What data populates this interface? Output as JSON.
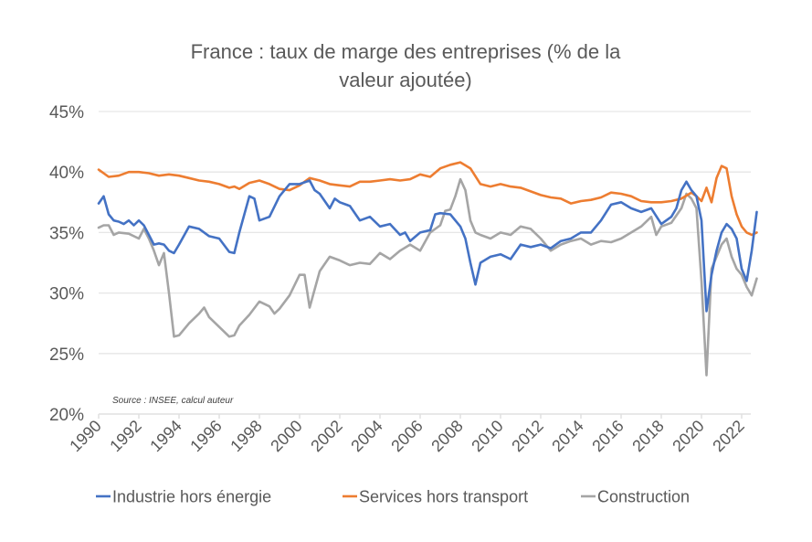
{
  "chart_data": {
    "type": "line",
    "title": "France : taux de marge des entreprises (% de la valeur ajoutée)",
    "title_lines": [
      "France : taux de marge des entreprises (% de la",
      "valeur ajoutée)"
    ],
    "xlabel": "",
    "ylabel": "",
    "source_note": "Source : INSEE, calcul auteur",
    "ylim": [
      20,
      45
    ],
    "yticks": [
      20,
      25,
      30,
      35,
      40,
      45
    ],
    "ytick_labels": [
      "20%",
      "25%",
      "30%",
      "35%",
      "40%",
      "45%"
    ],
    "xlim": [
      1990,
      2022.75
    ],
    "xticks": [
      1990,
      1992,
      1994,
      1996,
      1998,
      2000,
      2002,
      2004,
      2006,
      2008,
      2010,
      2012,
      2014,
      2016,
      2018,
      2020,
      2022
    ],
    "xtick_labels": [
      "1990",
      "1992",
      "1994",
      "1996",
      "1998",
      "2000",
      "2002",
      "2004",
      "2006",
      "2008",
      "2010",
      "2012",
      "2014",
      "2016",
      "2018",
      "2020",
      "2022"
    ],
    "grid": true,
    "legend_position": "bottom",
    "series": [
      {
        "name": "Industrie hors énergie",
        "color": "#4472C4",
        "x": [
          1990,
          1990.25,
          1990.5,
          1990.75,
          1991,
          1991.25,
          1991.5,
          1991.75,
          1992,
          1992.25,
          1992.5,
          1992.75,
          1993,
          1993.25,
          1993.5,
          1993.75,
          1994,
          1994.5,
          1995,
          1995.5,
          1996,
          1996.5,
          1996.75,
          1997,
          1997.5,
          1997.75,
          1998,
          1998.5,
          1999,
          1999.5,
          2000,
          2000.5,
          2000.75,
          2001,
          2001.5,
          2001.75,
          2002,
          2002.5,
          2003,
          2003.5,
          2004,
          2004.5,
          2005,
          2005.25,
          2005.5,
          2006,
          2006.5,
          2006.75,
          2007,
          2007.5,
          2008,
          2008.25,
          2008.5,
          2008.75,
          2009,
          2009.5,
          2010,
          2010.5,
          2011,
          2011.5,
          2012,
          2012.5,
          2013,
          2013.5,
          2014,
          2014.5,
          2015,
          2015.5,
          2016,
          2016.5,
          2017,
          2017.5,
          2018,
          2018.5,
          2018.75,
          2019,
          2019.25,
          2019.5,
          2019.75,
          2020,
          2020.25,
          2020.5,
          2020.75,
          2021,
          2021.25,
          2021.5,
          2021.75,
          2022,
          2022.25,
          2022.5,
          2022.75
        ],
        "values": [
          37.4,
          38.0,
          36.5,
          36.0,
          35.9,
          35.7,
          36.0,
          35.6,
          36.0,
          35.6,
          34.8,
          34.0,
          34.1,
          34.0,
          33.5,
          33.3,
          34.0,
          35.5,
          35.3,
          34.7,
          34.5,
          33.4,
          33.3,
          35.0,
          38.0,
          37.8,
          36.0,
          36.3,
          38.0,
          39.0,
          39.0,
          39.3,
          38.5,
          38.2,
          37.0,
          37.8,
          37.5,
          37.2,
          36.0,
          36.3,
          35.5,
          35.7,
          34.8,
          35.0,
          34.3,
          35.0,
          35.2,
          36.5,
          36.6,
          36.5,
          35.5,
          34.5,
          32.5,
          30.7,
          32.5,
          33.0,
          33.2,
          32.8,
          34.0,
          33.8,
          34.0,
          33.7,
          34.3,
          34.5,
          35.0,
          35.0,
          36.0,
          37.3,
          37.5,
          37.0,
          36.7,
          37.0,
          35.7,
          36.3,
          37.0,
          38.5,
          39.2,
          38.5,
          38.0,
          36.0,
          28.5,
          31.5,
          33.5,
          35.0,
          35.7,
          35.3,
          34.5,
          32.0,
          31.0,
          33.5,
          36.7
        ]
      },
      {
        "name": "Services hors transport",
        "color": "#ED7D31",
        "x": [
          1990,
          1990.5,
          1991,
          1991.5,
          1992,
          1992.5,
          1993,
          1993.5,
          1994,
          1994.5,
          1995,
          1995.5,
          1996,
          1996.5,
          1996.75,
          1997,
          1997.5,
          1998,
          1998.5,
          1999,
          1999.5,
          2000,
          2000.5,
          2001,
          2001.5,
          2002,
          2002.5,
          2003,
          2003.5,
          2004,
          2004.5,
          2005,
          2005.5,
          2006,
          2006.5,
          2007,
          2007.5,
          2008,
          2008.5,
          2009,
          2009.5,
          2010,
          2010.5,
          2011,
          2011.5,
          2012,
          2012.5,
          2013,
          2013.5,
          2014,
          2014.5,
          2015,
          2015.5,
          2016,
          2016.5,
          2017,
          2017.5,
          2018,
          2018.5,
          2019,
          2019.5,
          2019.75,
          2020,
          2020.25,
          2020.5,
          2020.75,
          2021,
          2021.25,
          2021.5,
          2021.75,
          2022,
          2022.25,
          2022.5,
          2022.75
        ],
        "values": [
          40.2,
          39.6,
          39.7,
          40.0,
          40.0,
          39.9,
          39.7,
          39.8,
          39.7,
          39.5,
          39.3,
          39.2,
          39.0,
          38.7,
          38.8,
          38.6,
          39.1,
          39.3,
          39.0,
          38.6,
          38.5,
          38.9,
          39.5,
          39.3,
          39.0,
          38.9,
          38.8,
          39.2,
          39.2,
          39.3,
          39.4,
          39.3,
          39.4,
          39.8,
          39.6,
          40.3,
          40.6,
          40.8,
          40.3,
          39.0,
          38.8,
          39.0,
          38.8,
          38.7,
          38.4,
          38.1,
          37.9,
          37.8,
          37.4,
          37.6,
          37.7,
          37.9,
          38.3,
          38.2,
          38.0,
          37.6,
          37.5,
          37.5,
          37.6,
          37.8,
          38.3,
          38.0,
          37.6,
          38.7,
          37.5,
          39.5,
          40.5,
          40.3,
          38.0,
          36.5,
          35.5,
          35.0,
          34.8,
          35.0
        ]
      },
      {
        "name": "Construction",
        "color": "#A5A5A5",
        "x": [
          1990,
          1990.25,
          1990.5,
          1990.75,
          1991,
          1991.5,
          1992,
          1992.25,
          1992.5,
          1992.75,
          1993,
          1993.25,
          1993.5,
          1993.75,
          1994,
          1994.5,
          1995,
          1995.25,
          1995.5,
          1996,
          1996.5,
          1996.75,
          1997,
          1997.5,
          1998,
          1998.5,
          1998.75,
          1999,
          1999.5,
          2000,
          2000.25,
          2000.5,
          2001,
          2001.5,
          2002,
          2002.5,
          2003,
          2003.5,
          2004,
          2004.5,
          2005,
          2005.5,
          2006,
          2006.5,
          2007,
          2007.25,
          2007.5,
          2007.75,
          2008,
          2008.25,
          2008.5,
          2008.75,
          2009,
          2009.5,
          2010,
          2010.5,
          2011,
          2011.5,
          2012,
          2012.5,
          2013,
          2013.5,
          2014,
          2014.5,
          2015,
          2015.5,
          2016,
          2016.5,
          2017,
          2017.5,
          2017.75,
          2018,
          2018.5,
          2019,
          2019.25,
          2019.5,
          2019.75,
          2020,
          2020.25,
          2020.5,
          2020.75,
          2021,
          2021.25,
          2021.5,
          2021.75,
          2022,
          2022.25,
          2022.5,
          2022.75
        ],
        "values": [
          35.4,
          35.6,
          35.6,
          34.8,
          35.0,
          34.9,
          34.5,
          35.3,
          34.5,
          33.5,
          32.3,
          33.3,
          30.0,
          26.4,
          26.5,
          27.5,
          28.3,
          28.8,
          28.0,
          27.2,
          26.4,
          26.5,
          27.3,
          28.2,
          29.3,
          28.9,
          28.3,
          28.7,
          29.8,
          31.5,
          31.5,
          28.8,
          31.8,
          33.0,
          32.7,
          32.3,
          32.5,
          32.4,
          33.3,
          32.8,
          33.5,
          34.0,
          33.5,
          35.0,
          35.6,
          36.8,
          36.9,
          38.0,
          39.4,
          38.5,
          36.0,
          35.0,
          34.8,
          34.5,
          35.0,
          34.8,
          35.5,
          35.3,
          34.5,
          33.5,
          34.0,
          34.3,
          34.5,
          34.0,
          34.3,
          34.2,
          34.5,
          35.0,
          35.5,
          36.3,
          34.8,
          35.5,
          35.8,
          37.0,
          38.2,
          37.8,
          37.0,
          31.0,
          23.2,
          32.0,
          33.0,
          34.0,
          34.5,
          33.0,
          32.0,
          31.5,
          30.5,
          29.8,
          31.2
        ]
      }
    ]
  }
}
